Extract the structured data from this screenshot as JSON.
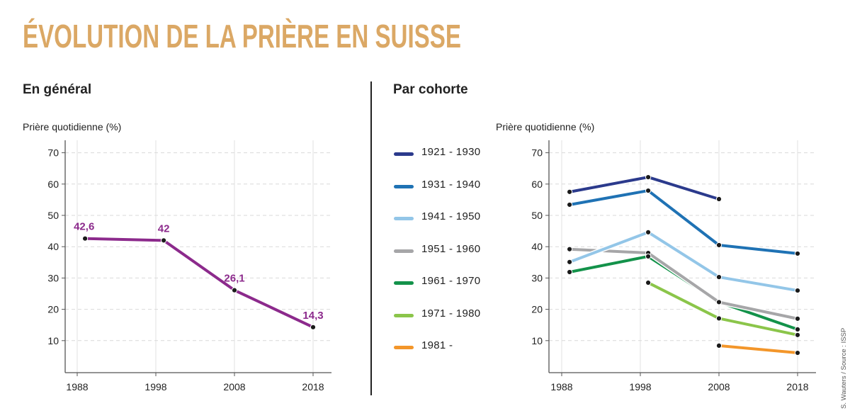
{
  "title": "ÉVOLUTION DE LA PRIÈRE EN SUISSE",
  "credit": "S. Wauters / Source : ISSP",
  "colors": {
    "title": "#dba865",
    "general_line": "#8c2a8c"
  },
  "chart_data": [
    {
      "type": "line",
      "title": "En général",
      "ylabel": "Prière quotidienne (%)",
      "xlabel": "",
      "x_ticks": [
        "1988",
        "1998",
        "2008",
        "2018"
      ],
      "y_ticks": [
        "10",
        "20",
        "30",
        "40",
        "50",
        "60",
        "70"
      ],
      "ylim": [
        0,
        73
      ],
      "xlim": [
        1986,
        2020
      ],
      "grid": true,
      "series": [
        {
          "name": "Prière quotidienne",
          "color": "#8c2a8c",
          "x": [
            1989,
            1999,
            2008,
            2018
          ],
          "values": [
            42.6,
            42,
            26.1,
            14.3
          ],
          "labels": [
            "42,6",
            "42",
            "26,1",
            "14,3"
          ]
        }
      ]
    },
    {
      "type": "line",
      "title": "Par cohorte",
      "ylabel": "Prière quotidienne (%)",
      "xlabel": "",
      "x_ticks": [
        "1988",
        "1998",
        "2008",
        "2018"
      ],
      "y_ticks": [
        "10",
        "20",
        "30",
        "40",
        "50",
        "60",
        "70"
      ],
      "ylim": [
        0,
        73
      ],
      "xlim": [
        1986,
        2020
      ],
      "grid": true,
      "legend": "left",
      "series": [
        {
          "name": "1921 - 1930",
          "color": "#2b3a8c",
          "x": [
            1989,
            1999,
            2008
          ],
          "values": [
            57.5,
            62.2,
            55.2
          ]
        },
        {
          "name": "1931 - 1940",
          "color": "#1f72b4",
          "x": [
            1989,
            1999,
            2008,
            2018
          ],
          "values": [
            53.4,
            57.9,
            40.5,
            37.8
          ]
        },
        {
          "name": "1941 - 1950",
          "color": "#93c6e8",
          "x": [
            1989,
            1999,
            2008,
            2018
          ],
          "values": [
            35.1,
            44.6,
            30.3,
            26.0
          ]
        },
        {
          "name": "1951 - 1960",
          "color": "#a6a6a8",
          "x": [
            1989,
            1999,
            2008,
            2018
          ],
          "values": [
            39.2,
            38.0,
            22.3,
            17.0
          ]
        },
        {
          "name": "1961 - 1970",
          "color": "#13924a",
          "x": [
            1989,
            1999,
            2008,
            2018
          ],
          "values": [
            31.9,
            36.9,
            22.3,
            13.6
          ]
        },
        {
          "name": "1971 - 1980",
          "color": "#8bc54a",
          "x": [
            1999,
            2008,
            2018
          ],
          "values": [
            28.5,
            17.1,
            11.8
          ]
        },
        {
          "name": "1981 -",
          "color": "#f3962a",
          "x": [
            2008,
            2018
          ],
          "values": [
            8.4,
            6.1
          ]
        }
      ]
    }
  ]
}
